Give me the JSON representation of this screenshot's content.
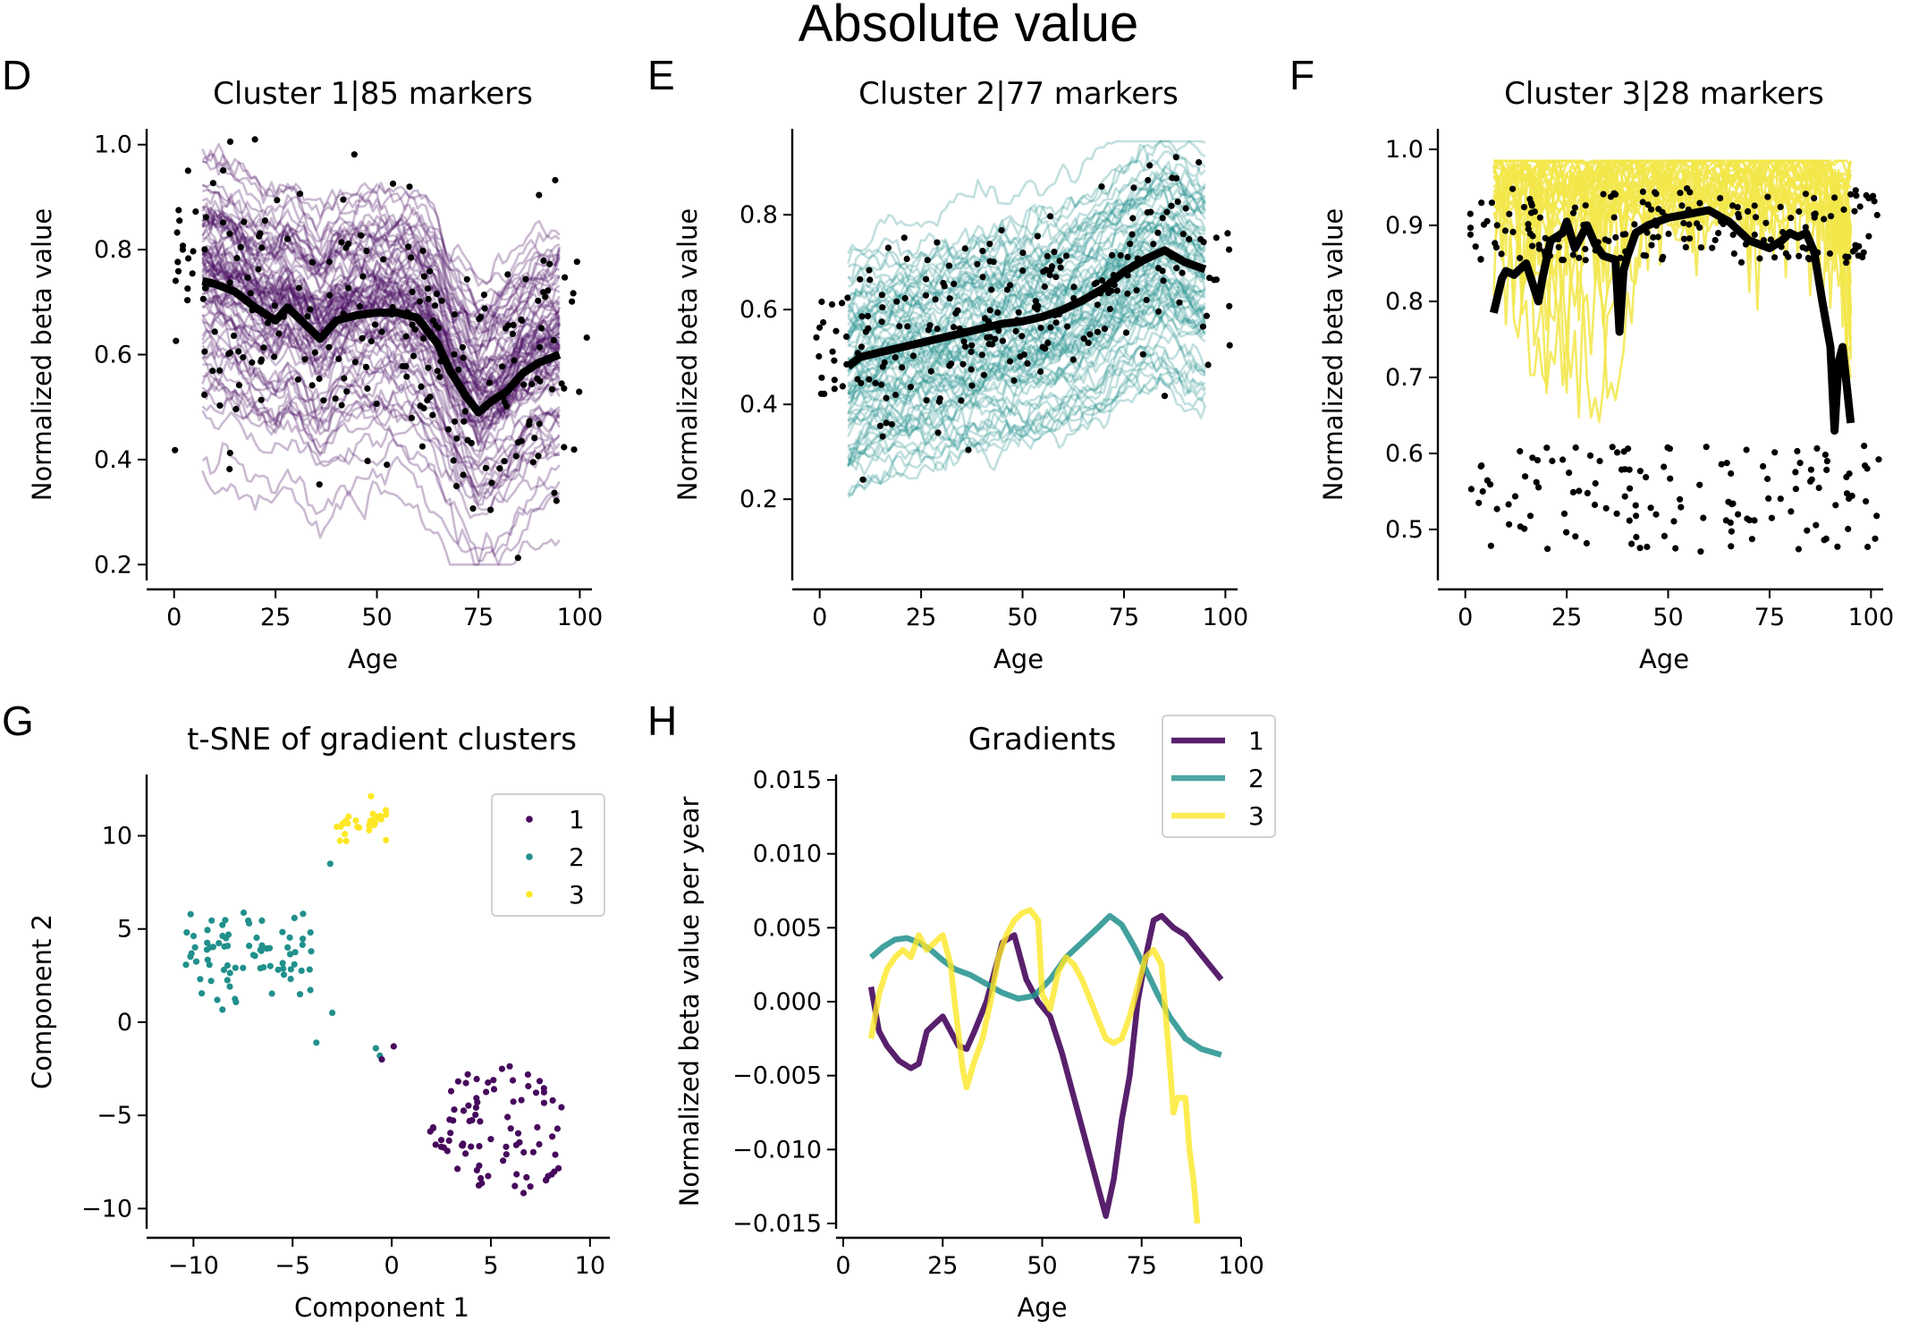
{
  "figure": {
    "title": "Absolute value",
    "panel_letters": [
      "D",
      "E",
      "F",
      "G",
      "H"
    ]
  },
  "colors": {
    "cluster1": "#46085c",
    "cluster2": "#21908c",
    "cluster3": "#fde725",
    "cluster3_line": "#f2e64a",
    "mean_line": "#000000",
    "samples": "#000000",
    "spine": "#000000"
  },
  "chart_data": [
    {
      "id": "D",
      "type": "line",
      "title": "Cluster 1|85 markers",
      "xlabel": "Age",
      "ylabel": "Normalized beta value",
      "xlim": [
        -5,
        103
      ],
      "ylim": [
        0.18,
        1.02
      ],
      "xticks": [
        0,
        25,
        50,
        75,
        100
      ],
      "yticks": [
        0.2,
        0.4,
        0.6,
        0.8,
        1.0
      ],
      "ytick_labels": [
        "0.2",
        "0.4",
        "0.6",
        "0.8",
        "1.0"
      ],
      "series_color": "cluster1",
      "n_markers": 85,
      "mean_line": {
        "x": [
          7,
          10,
          15,
          20,
          25,
          28,
          32,
          36,
          40,
          45,
          50,
          55,
          60,
          65,
          68,
          72,
          75,
          78,
          82,
          86,
          90,
          95
        ],
        "y": [
          0.74,
          0.735,
          0.72,
          0.69,
          0.665,
          0.69,
          0.66,
          0.63,
          0.665,
          0.675,
          0.68,
          0.68,
          0.67,
          0.62,
          0.57,
          0.52,
          0.49,
          0.51,
          0.53,
          0.565,
          0.585,
          0.6
        ]
      },
      "marker_spread": 0.13,
      "samples": {
        "count": 230,
        "age_range": [
          0,
          102
        ],
        "y_noise": 0.14
      }
    },
    {
      "id": "E",
      "type": "line",
      "title": "Cluster 2|77 markers",
      "xlabel": "Age",
      "ylabel": "Normalized beta value",
      "xlim": [
        -5,
        103
      ],
      "ylim": [
        0.04,
        0.97
      ],
      "xticks": [
        0,
        25,
        50,
        75,
        100
      ],
      "yticks": [
        0.2,
        0.4,
        0.6,
        0.8
      ],
      "ytick_labels": [
        "0.2",
        "0.4",
        "0.6",
        "0.8"
      ],
      "series_color": "cluster2",
      "n_markers": 77,
      "mean_line": {
        "x": [
          7,
          10,
          15,
          20,
          25,
          30,
          35,
          40,
          45,
          50,
          55,
          60,
          65,
          70,
          75,
          80,
          85,
          90,
          95
        ],
        "y": [
          0.48,
          0.5,
          0.51,
          0.52,
          0.53,
          0.54,
          0.55,
          0.56,
          0.57,
          0.575,
          0.585,
          0.6,
          0.62,
          0.645,
          0.68,
          0.705,
          0.725,
          0.7,
          0.685
        ]
      },
      "marker_spread": 0.13,
      "samples": {
        "count": 230,
        "age_range": [
          -1,
          102
        ],
        "y_noise": 0.1
      }
    },
    {
      "id": "F",
      "type": "line",
      "title": "Cluster 3|28 markers",
      "xlabel": "Age",
      "ylabel": "Normalized beta value",
      "xlim": [
        -5,
        103
      ],
      "ylim": [
        0.44,
        1.02
      ],
      "xticks": [
        0,
        25,
        50,
        75,
        100
      ],
      "yticks": [
        0.5,
        0.6,
        0.7,
        0.8,
        0.9,
        1.0
      ],
      "ytick_labels": [
        "0.5",
        "0.6",
        "0.7",
        "0.8",
        "0.9",
        "1.0"
      ],
      "series_color": "cluster3_line",
      "n_markers": 28,
      "mean_line": {
        "x": [
          7,
          9,
          10,
          12,
          15,
          18,
          19,
          21,
          24,
          25,
          27,
          30,
          32,
          34,
          37,
          38,
          39,
          40,
          42,
          45,
          50,
          55,
          60,
          65,
          70,
          75,
          78,
          80,
          82,
          84,
          86,
          88,
          90,
          91,
          92,
          93,
          95
        ],
        "y": [
          0.785,
          0.83,
          0.84,
          0.835,
          0.85,
          0.8,
          0.83,
          0.88,
          0.89,
          0.905,
          0.87,
          0.9,
          0.875,
          0.86,
          0.855,
          0.76,
          0.84,
          0.86,
          0.89,
          0.9,
          0.91,
          0.915,
          0.92,
          0.905,
          0.88,
          0.87,
          0.88,
          0.89,
          0.885,
          0.89,
          0.865,
          0.8,
          0.74,
          0.63,
          0.72,
          0.74,
          0.64
        ]
      },
      "samples": {
        "count": 300,
        "age_range": [
          0,
          102
        ]
      }
    },
    {
      "id": "G",
      "type": "scatter",
      "title": "t-SNE of gradient clusters",
      "xlabel": "Component 1",
      "ylabel": "Component 2",
      "xlim": [
        -12,
        11
      ],
      "ylim": [
        -10.8,
        13
      ],
      "xticks": [
        -10,
        -5,
        0,
        5,
        10
      ],
      "yticks": [
        -10,
        -5,
        0,
        5,
        10
      ],
      "xtick_labels": [
        "−10",
        "−5",
        "0",
        "5",
        "10"
      ],
      "ytick_labels": [
        "−10",
        "−5",
        "0",
        "5",
        "10"
      ],
      "legend_position": "upper-right",
      "series": [
        {
          "name": "1",
          "color": "cluster1",
          "n": 85,
          "center": [
            5.5,
            -5.8
          ],
          "spread": [
            3.6,
            3.0
          ]
        },
        {
          "name": "2",
          "color": "cluster2",
          "n": 77,
          "center": [
            -7.2,
            3.6
          ],
          "spread": [
            3.2,
            1.6
          ]
        },
        {
          "name": "3",
          "color": "cluster3",
          "n": 28,
          "center": [
            -1.5,
            10.6
          ],
          "spread": [
            1.6,
            0.8
          ]
        }
      ]
    },
    {
      "id": "H",
      "type": "line",
      "title": "Gradients",
      "xlabel": "Age",
      "ylabel": "Normalized beta value per year",
      "xlim": [
        0,
        100
      ],
      "ylim": [
        -0.015,
        0.015
      ],
      "xticks": [
        0,
        25,
        50,
        75,
        100
      ],
      "yticks": [
        -0.015,
        -0.01,
        -0.005,
        0.0,
        0.005,
        0.01,
        0.015
      ],
      "ytick_labels": [
        "−0.015",
        "−0.010",
        "−0.005",
        "0.000",
        "0.005",
        "0.010",
        "0.015"
      ],
      "legend_position": "top-right",
      "series": [
        {
          "name": "1",
          "color": "cluster1",
          "x": [
            7,
            9,
            11,
            14,
            17,
            19,
            21,
            23,
            25,
            27,
            29,
            31,
            33,
            36,
            40,
            43,
            46,
            49,
            52,
            55,
            58,
            61,
            64,
            66,
            68,
            70,
            72,
            74,
            76,
            78,
            80,
            83,
            86,
            89,
            92,
            95
          ],
          "y": [
            0.001,
            -0.002,
            -0.003,
            -0.004,
            -0.0045,
            -0.0042,
            -0.002,
            -0.0015,
            -0.001,
            -0.002,
            -0.003,
            -0.0032,
            -0.002,
            0.0,
            0.004,
            0.0045,
            0.0015,
            0.0,
            -0.001,
            -0.0035,
            -0.0065,
            -0.0095,
            -0.0125,
            -0.0145,
            -0.012,
            -0.008,
            -0.005,
            0.0,
            0.003,
            0.0055,
            0.0058,
            0.005,
            0.0045,
            0.0035,
            0.0025,
            0.0015
          ]
        },
        {
          "name": "2",
          "color": "cluster2",
          "x": [
            7,
            10,
            13,
            16,
            19,
            22,
            25,
            28,
            32,
            36,
            40,
            44,
            48,
            52,
            56,
            60,
            64,
            67,
            70,
            73,
            76,
            79,
            82,
            86,
            90,
            95
          ],
          "y": [
            0.003,
            0.0037,
            0.0042,
            0.0043,
            0.004,
            0.0035,
            0.0028,
            0.0022,
            0.0018,
            0.0012,
            0.0006,
            0.0002,
            0.0004,
            0.0015,
            0.003,
            0.004,
            0.005,
            0.0058,
            0.0052,
            0.0038,
            0.0022,
            0.0005,
            -0.001,
            -0.0025,
            -0.0032,
            -0.0036
          ]
        },
        {
          "name": "3",
          "color": "cluster3",
          "x": [
            7,
            9,
            11,
            13,
            15,
            17,
            19,
            21,
            23,
            25,
            27,
            28,
            30,
            31,
            33,
            35,
            37,
            39,
            41,
            43,
            45,
            47,
            49,
            50,
            52,
            54,
            56,
            58,
            60,
            63,
            66,
            68,
            70,
            72,
            74,
            76,
            78,
            80,
            82,
            83,
            84,
            86,
            87,
            88,
            89
          ],
          "y": [
            -0.0025,
            0.0005,
            0.0022,
            0.003,
            0.0035,
            0.003,
            0.0045,
            0.0035,
            0.004,
            0.0045,
            0.0025,
            0.0,
            -0.0045,
            -0.0058,
            -0.004,
            -0.0025,
            0.0,
            0.003,
            0.0045,
            0.0055,
            0.006,
            0.0062,
            0.0055,
            0.0005,
            -0.0005,
            0.002,
            0.003,
            0.0025,
            0.0015,
            -0.0005,
            -0.0025,
            -0.0028,
            -0.0025,
            -0.001,
            0.001,
            0.003,
            0.0035,
            0.0025,
            -0.004,
            -0.0075,
            -0.0065,
            -0.0065,
            -0.01,
            -0.012,
            -0.015
          ]
        }
      ]
    }
  ]
}
